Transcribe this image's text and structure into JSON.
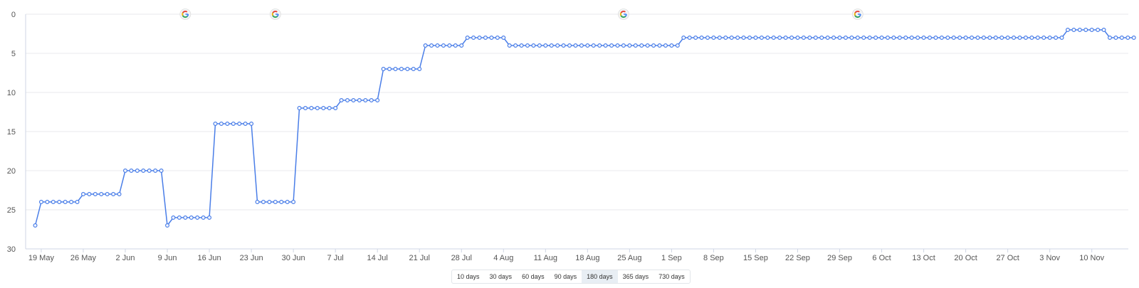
{
  "chart_data": {
    "type": "line",
    "xlabel": "",
    "ylabel": "",
    "ylim": [
      0,
      30
    ],
    "y_reversed": true,
    "y_ticks": [
      "0",
      "5",
      "10",
      "15",
      "20",
      "25",
      "30"
    ],
    "x_ticks": [
      "19 May",
      "26 May",
      "2 Jun",
      "9 Jun",
      "16 Jun",
      "23 Jun",
      "30 Jun",
      "7 Jul",
      "14 Jul",
      "21 Jul",
      "28 Jul",
      "4 Aug",
      "11 Aug",
      "18 Aug",
      "25 Aug",
      "1 Sep",
      "8 Sep",
      "15 Sep",
      "22 Sep",
      "29 Sep",
      "6 Oct",
      "13 Oct",
      "20 Oct",
      "27 Oct",
      "3 Nov",
      "10 Nov"
    ],
    "x_start": "2019-05-18",
    "values": [
      27,
      24,
      24,
      24,
      24,
      24,
      24,
      24,
      23,
      23,
      23,
      23,
      23,
      23,
      23,
      20,
      20,
      20,
      20,
      20,
      20,
      20,
      27,
      26,
      26,
      26,
      26,
      26,
      26,
      26,
      14,
      14,
      14,
      14,
      14,
      14,
      14,
      24,
      24,
      24,
      24,
      24,
      24,
      24,
      12,
      12,
      12,
      12,
      12,
      12,
      12,
      11,
      11,
      11,
      11,
      11,
      11,
      11,
      7,
      7,
      7,
      7,
      7,
      7,
      7,
      4,
      4,
      4,
      4,
      4,
      4,
      4,
      3,
      3,
      3,
      3,
      3,
      3,
      3,
      4,
      4,
      4,
      4,
      4,
      4,
      4,
      4,
      4,
      4,
      4,
      4,
      4,
      4,
      4,
      4,
      4,
      4,
      4,
      4,
      4,
      4,
      4,
      4,
      4,
      4,
      4,
      4,
      4,
      3,
      3,
      3,
      3,
      3,
      3,
      3,
      3,
      3,
      3,
      3,
      3,
      3,
      3,
      3,
      3,
      3,
      3,
      3,
      3,
      3,
      3,
      3,
      3,
      3,
      3,
      3,
      3,
      3,
      3,
      3,
      3,
      3,
      3,
      3,
      3,
      3,
      3,
      3,
      3,
      3,
      3,
      3,
      3,
      3,
      3,
      3,
      3,
      3,
      3,
      3,
      3,
      3,
      3,
      3,
      3,
      3,
      3,
      3,
      3,
      3,
      3,
      3,
      3,
      2,
      2,
      2,
      2,
      2,
      2,
      2,
      3,
      3,
      3,
      3,
      3
    ],
    "grid": true,
    "line_color": "#4a7ee8",
    "marker_color": "#4a7ee8",
    "event_markers": [
      {
        "date": "2019-06-12",
        "icon": "google-g-icon"
      },
      {
        "date": "2019-06-27",
        "icon": "google-g-icon"
      },
      {
        "date": "2019-08-24",
        "icon": "google-g-icon"
      },
      {
        "date": "2019-10-02",
        "icon": "google-g-icon"
      }
    ]
  },
  "range_selector": {
    "buttons": [
      "10 days",
      "30 days",
      "60 days",
      "90 days",
      "180 days",
      "365 days",
      "730 days"
    ],
    "active": "180 days"
  }
}
